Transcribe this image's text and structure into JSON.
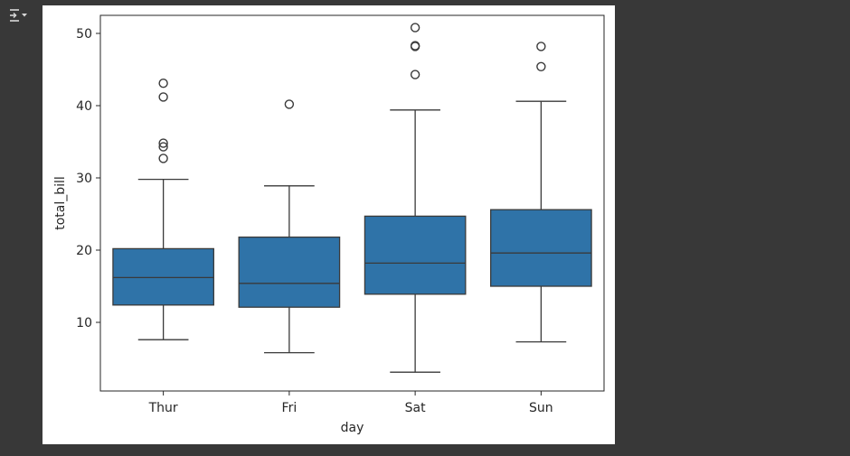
{
  "toolbar": {
    "icon": "output-collapse-icon"
  },
  "chart_data": {
    "type": "box",
    "x_label": "day",
    "y_label": "total_bill",
    "y_ticks": [
      10,
      20,
      30,
      40,
      50
    ],
    "ylim": [
      0.5,
      52.5
    ],
    "grid": false,
    "box_color": "#2f73a8",
    "line_color": "#3a3a3a",
    "categories": [
      "Thur",
      "Fri",
      "Sat",
      "Sun"
    ],
    "boxes": [
      {
        "category": "Thur",
        "whisker_low": 7.6,
        "q1": 12.4,
        "median": 16.2,
        "q3": 20.2,
        "whisker_high": 29.8,
        "outliers": [
          32.7,
          34.3,
          34.8,
          41.2,
          43.1
        ]
      },
      {
        "category": "Fri",
        "whisker_low": 5.8,
        "q1": 12.1,
        "median": 15.4,
        "q3": 21.8,
        "whisker_high": 28.9,
        "outliers": [
          40.2
        ]
      },
      {
        "category": "Sat",
        "whisker_low": 3.1,
        "q1": 13.9,
        "median": 18.2,
        "q3": 24.7,
        "whisker_high": 39.4,
        "outliers": [
          44.3,
          48.2,
          48.3,
          50.8
        ]
      },
      {
        "category": "Sun",
        "whisker_low": 7.3,
        "q1": 15.0,
        "median": 19.6,
        "q3": 25.6,
        "whisker_high": 40.6,
        "outliers": [
          45.4,
          48.2
        ]
      }
    ]
  }
}
